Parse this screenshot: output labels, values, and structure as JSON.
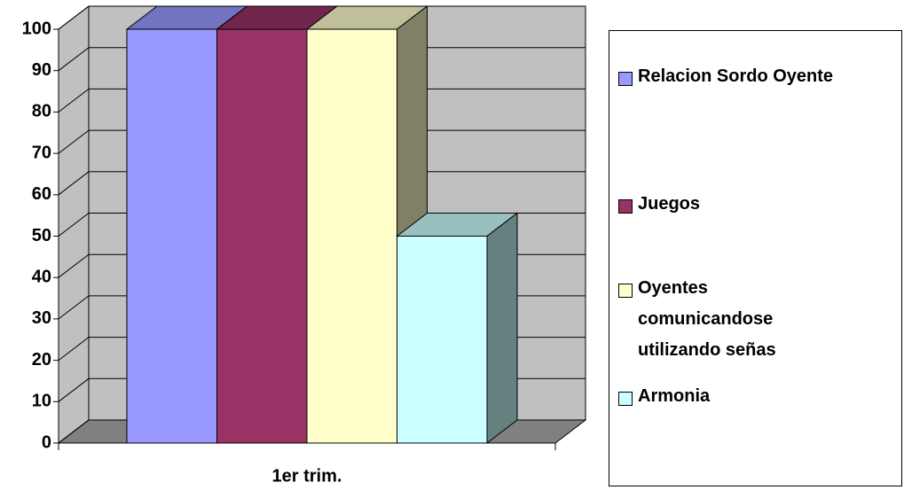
{
  "chart_data": {
    "type": "bar3d",
    "categories": [
      "1er trim."
    ],
    "series": [
      {
        "name": "Relacion Sordo Oyente",
        "color": "#9999ff",
        "values": [
          100
        ]
      },
      {
        "name": "Juegos",
        "color": "#993366",
        "values": [
          100
        ]
      },
      {
        "name": "Oyentes comunicandose utilizando señas",
        "color": "#ffffcc",
        "values": [
          100
        ]
      },
      {
        "name": "Armonia",
        "color": "#ccffff",
        "values": [
          50
        ]
      }
    ],
    "ylim": [
      0,
      100
    ],
    "yticks": [
      0,
      10,
      20,
      30,
      40,
      50,
      60,
      70,
      80,
      90,
      100
    ],
    "grid": true,
    "legend": "right"
  }
}
